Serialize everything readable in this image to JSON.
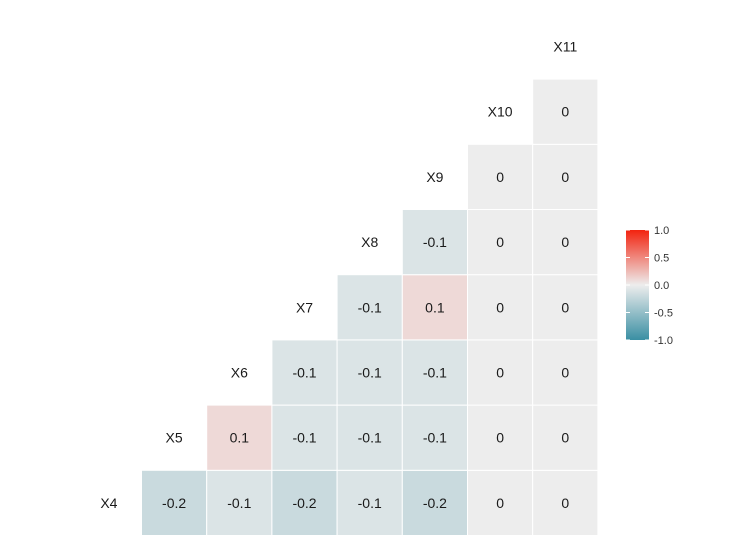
{
  "chart_data": {
    "type": "heatmap",
    "variables": [
      "X4",
      "X5",
      "X6",
      "X7",
      "X8",
      "X9",
      "X10",
      "X11"
    ],
    "matrix": [
      [
        -0.2,
        -0.1,
        -0.2,
        -0.1,
        -0.2,
        0,
        0
      ],
      [
        0.1,
        -0.1,
        -0.1,
        -0.1,
        0,
        0
      ],
      [
        -0.1,
        -0.1,
        -0.1,
        0,
        0
      ],
      [
        -0.1,
        0.1,
        0,
        0
      ],
      [
        -0.1,
        0,
        0
      ],
      [
        0,
        0
      ],
      [
        0
      ]
    ],
    "labels": [
      [
        "-0.2",
        "-0.1",
        "-0.2",
        "-0.1",
        "-0.2",
        "0",
        "0"
      ],
      [
        "0.1",
        "-0.1",
        "-0.1",
        "-0.1",
        "0",
        "0"
      ],
      [
        "-0.1",
        "-0.1",
        "-0.1",
        "0",
        "0"
      ],
      [
        "-0.1",
        "0.1",
        "0",
        "0"
      ],
      [
        "-0.1",
        "0",
        "0"
      ],
      [
        "0",
        "0"
      ],
      [
        "0"
      ]
    ],
    "legend": {
      "range": [
        -1.0,
        1.0
      ],
      "ticks": [
        1.0,
        0.5,
        0.0,
        -0.5,
        -1.0
      ],
      "tick_labels": [
        "1.0",
        "0.5",
        "0.0",
        "-0.5",
        "-1.0"
      ],
      "placement": "right"
    },
    "colors": {
      "low": "#3a8fa3",
      "mid": "#ededed",
      "high": "#f2230f"
    }
  }
}
